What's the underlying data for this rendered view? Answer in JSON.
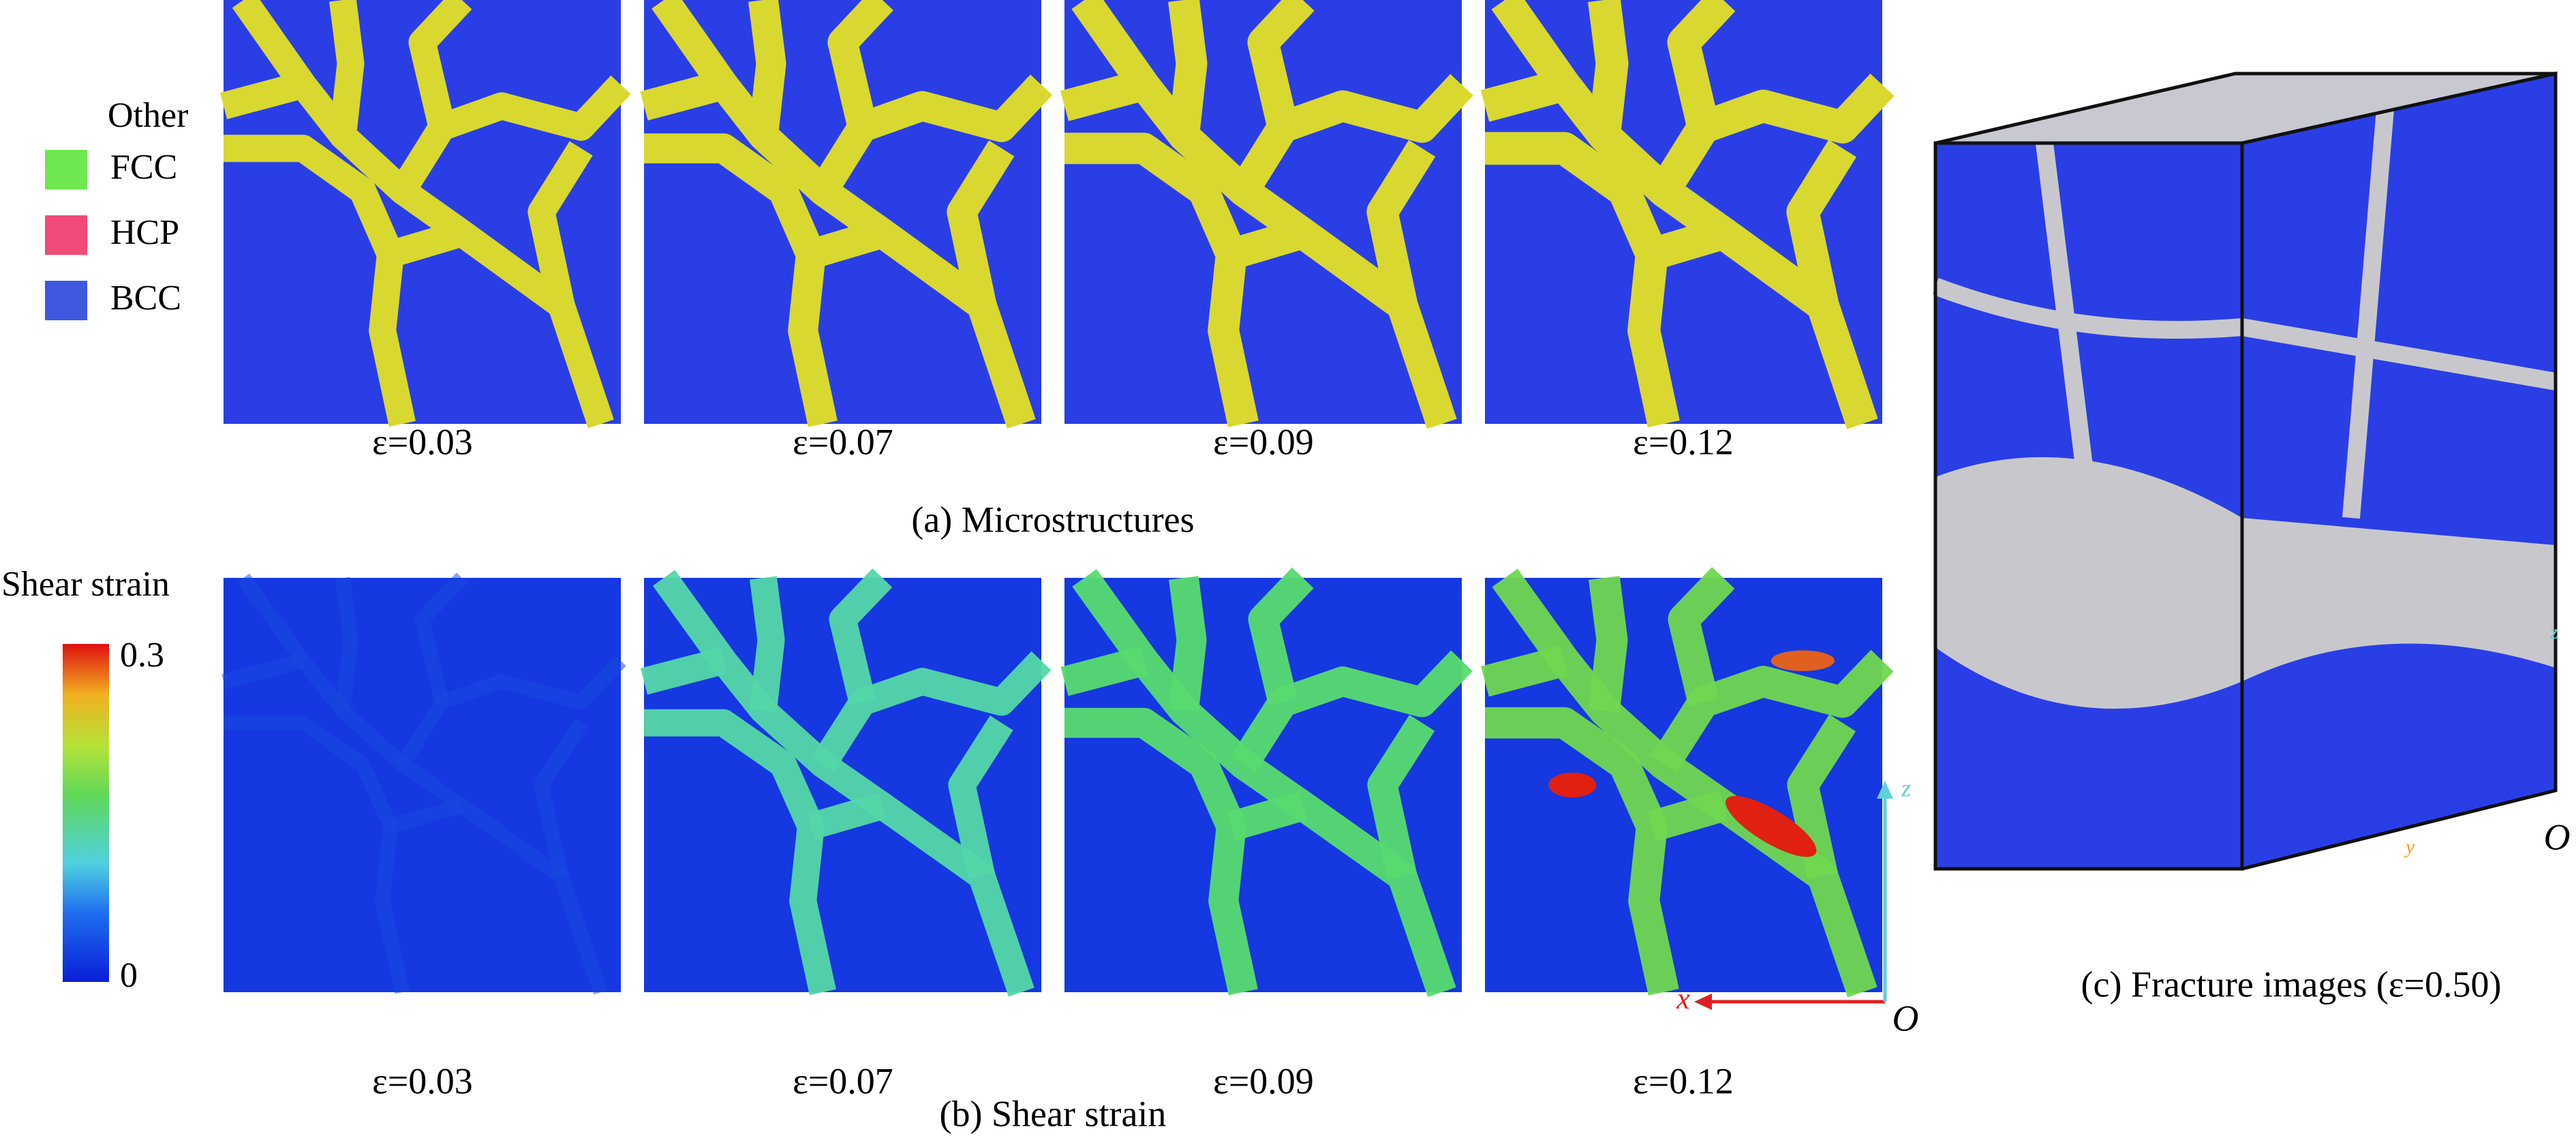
{
  "legend": {
    "title": "Other",
    "items": [
      "FCC",
      "HCP",
      "BCC"
    ]
  },
  "microstructures": {
    "labels": [
      "ε=0.03",
      "ε=0.07",
      "ε=0.09",
      "ε=0.12"
    ],
    "caption": "(a) Microstructures"
  },
  "shear_strain": {
    "title": "Shear strain",
    "colorbar_max": "0.3",
    "colorbar_min": "0",
    "labels": [
      "ε=0.03",
      "ε=0.07",
      "ε=0.09",
      "ε=0.12"
    ],
    "caption": "(b) Shear strain",
    "axes": {
      "x": "x",
      "z": "z",
      "origin": "O"
    }
  },
  "fracture": {
    "caption": "(c) Fracture images (ε=0.50)",
    "axes": {
      "y": "y",
      "z": "z",
      "origin": "O"
    }
  }
}
